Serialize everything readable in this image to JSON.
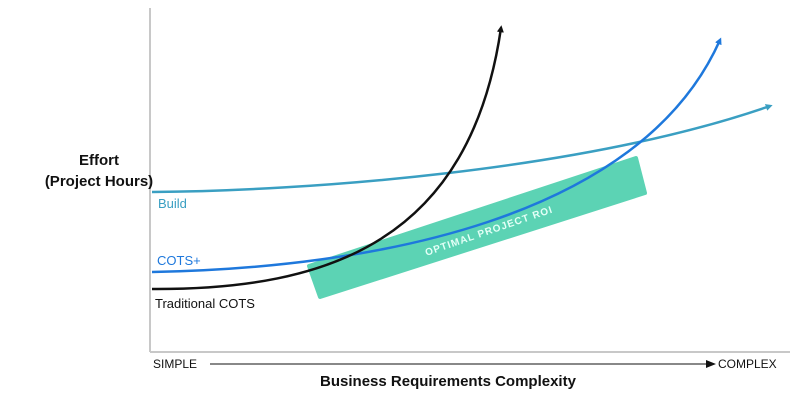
{
  "y_axis_label": {
    "line1": "Effort",
    "line2": "(Project Hours)"
  },
  "x_axis_label": "Business Requirements Complexity",
  "x_axis_start": "SIMPLE",
  "x_axis_end": "COMPLEX",
  "curves": [
    {
      "name": "Build",
      "label": "Build",
      "color": "#3a9fc2"
    },
    {
      "name": "COTS+",
      "label": "COTS+",
      "color": "#1e78dc"
    },
    {
      "name": "Traditional COTS",
      "label": "Traditional COTS",
      "color": "#111111"
    }
  ],
  "band": {
    "label": "OPTIMAL PROJECT ROI",
    "color": "#5cd3b4",
    "text_color": "#e4fff7"
  },
  "colors": {
    "axis": "#c8c8c8",
    "text": "#111111"
  }
}
